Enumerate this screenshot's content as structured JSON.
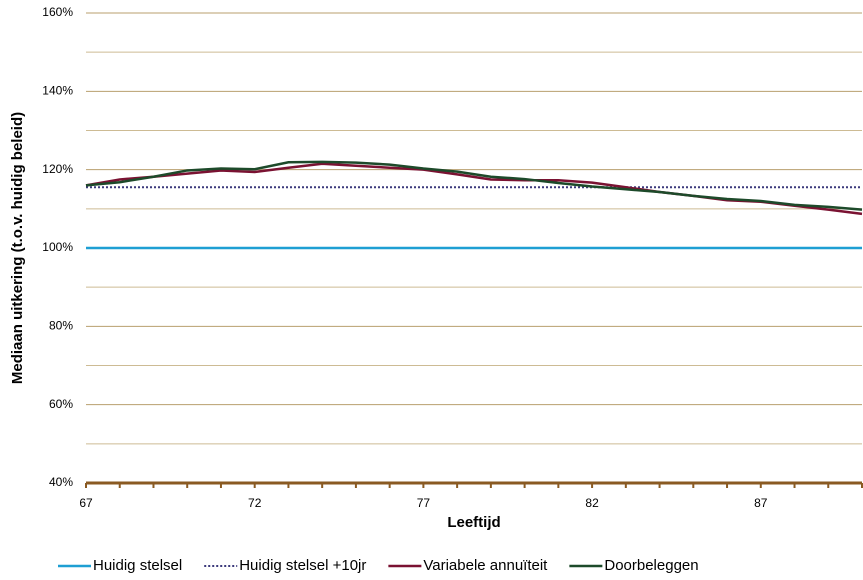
{
  "chart_data": {
    "type": "line",
    "x_label": "Leeftijd",
    "y_label": "Mediaan uitkering (t.o.v. huidig beleid)",
    "x": [
      67,
      68,
      69,
      70,
      71,
      72,
      73,
      74,
      75,
      76,
      77,
      78,
      79,
      80,
      81,
      82,
      83,
      84,
      85,
      86,
      87,
      88,
      89,
      90
    ],
    "xlim": [
      67,
      90
    ],
    "xticks": [
      67,
      72,
      77,
      82,
      87
    ],
    "xminor": [
      68,
      69,
      70,
      71,
      73,
      74,
      75,
      76,
      78,
      79,
      80,
      81,
      83,
      84,
      85,
      86,
      88,
      89,
      90
    ],
    "ylim": [
      40,
      160
    ],
    "yticks": [
      {
        "value": 40,
        "label": "40%"
      },
      {
        "value": 60,
        "label": "60%"
      },
      {
        "value": 80,
        "label": "80%"
      },
      {
        "value": 100,
        "label": "100%"
      },
      {
        "value": 120,
        "label": "120%"
      },
      {
        "value": 140,
        "label": "140%"
      },
      {
        "value": 160,
        "label": "160%"
      }
    ],
    "yminor": [
      50,
      70,
      90,
      110,
      130,
      150
    ],
    "grid": true,
    "legend": "bottom",
    "series": [
      {
        "name": "Huidig stelsel",
        "color": "#1e9fd3",
        "style": "solid",
        "values": [
          100,
          100,
          100,
          100,
          100,
          100,
          100,
          100,
          100,
          100,
          100,
          100,
          100,
          100,
          100,
          100,
          100,
          100,
          100,
          100,
          100,
          100,
          100,
          100
        ]
      },
      {
        "name": "Huidig stelsel +10jr",
        "color": "#3c3a7c",
        "style": "dotted",
        "values": [
          115.5,
          115.5,
          115.5,
          115.5,
          115.5,
          115.5,
          115.5,
          115.5,
          115.5,
          115.5,
          115.5,
          115.5,
          115.5,
          115.5,
          115.5,
          115.5,
          115.5,
          115.5,
          115.5,
          115.5,
          115.5,
          115.5,
          115.5,
          115.5
        ]
      },
      {
        "name": "Variabele annuïteit",
        "color": "#7a1232",
        "style": "solid",
        "values": [
          116,
          117.5,
          118.2,
          119,
          119.8,
          119.4,
          120.5,
          121.5,
          121,
          120.5,
          120,
          118.8,
          117.5,
          117.3,
          117.3,
          116.7,
          115.5,
          114.3,
          113.3,
          112.2,
          111.8,
          110.8,
          109.8,
          108.7
        ]
      },
      {
        "name": "Doorbeleggen",
        "color": "#1d4a2a",
        "style": "solid",
        "values": [
          116,
          116.8,
          118.2,
          119.8,
          120.3,
          120.1,
          121.9,
          122,
          121.8,
          121.3,
          120.3,
          119.5,
          118.2,
          117.6,
          116.6,
          115.7,
          115,
          114.3,
          113.3,
          112.5,
          112,
          111,
          110.5,
          109.8
        ]
      }
    ]
  }
}
